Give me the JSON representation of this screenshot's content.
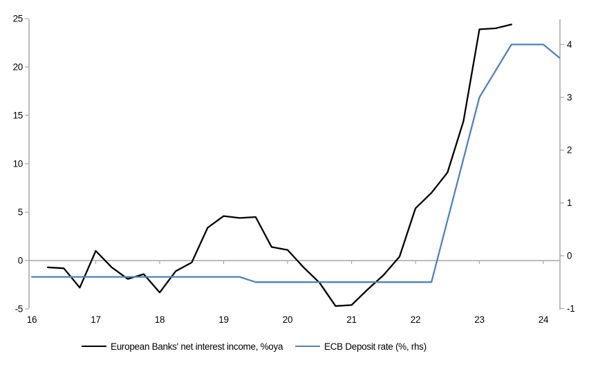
{
  "chart_data": {
    "type": "line",
    "title": "",
    "xlabel": "",
    "ylabel_left": "",
    "ylabel_right": "",
    "grid": "zero-line-only",
    "legend_position": "bottom",
    "axis_color": "#a6a6a6",
    "x_axis": {
      "labels": [
        "16",
        "17",
        "18",
        "19",
        "20",
        "21",
        "22",
        "23",
        "24"
      ],
      "years": [
        16,
        17,
        18,
        19,
        20,
        21,
        22,
        23,
        24
      ],
      "tick_years": [
        17,
        18,
        19,
        20,
        21,
        22,
        23,
        24
      ],
      "range": [
        16,
        24.3
      ]
    },
    "left_axis": {
      "ticks": [
        25,
        20,
        15,
        10,
        5,
        0,
        -5
      ],
      "range": [
        -5,
        25
      ]
    },
    "right_axis": {
      "ticks": [
        4,
        3,
        2,
        1,
        0,
        -1
      ],
      "range": [
        -1,
        4.5
      ]
    },
    "series": [
      {
        "name": "European Banks' net interest income, %oya",
        "axis": "left",
        "color": "#000000",
        "width": 2.3,
        "x": [
          16.25,
          16.5,
          16.75,
          17.0,
          17.25,
          17.5,
          17.75,
          18.0,
          18.25,
          18.5,
          18.75,
          19.0,
          19.25,
          19.5,
          19.75,
          20.0,
          20.25,
          20.5,
          20.75,
          21.0,
          21.25,
          21.5,
          21.75,
          22.0,
          22.25,
          22.5,
          22.75,
          23.0,
          23.25,
          23.5
        ],
        "values": [
          -0.7,
          -0.8,
          -2.8,
          1.0,
          -0.7,
          -1.9,
          -1.4,
          -3.3,
          -1.1,
          -0.2,
          3.4,
          4.6,
          4.4,
          4.5,
          1.4,
          1.1,
          -0.7,
          -2.3,
          -4.7,
          -4.6,
          -3.0,
          -1.5,
          0.4,
          5.4,
          7.0,
          9.1,
          14.4,
          23.9,
          24.0,
          24.4
        ]
      },
      {
        "name": "ECB Deposit rate (%, rhs)",
        "axis": "right",
        "color": "#4f81bd",
        "width": 2.3,
        "x": [
          16.0,
          19.25,
          19.5,
          22.25,
          23.0,
          23.5,
          24.0,
          24.25
        ],
        "values": [
          -0.4,
          -0.4,
          -0.5,
          -0.5,
          3.0,
          4.0,
          4.0,
          3.75
        ]
      }
    ]
  }
}
